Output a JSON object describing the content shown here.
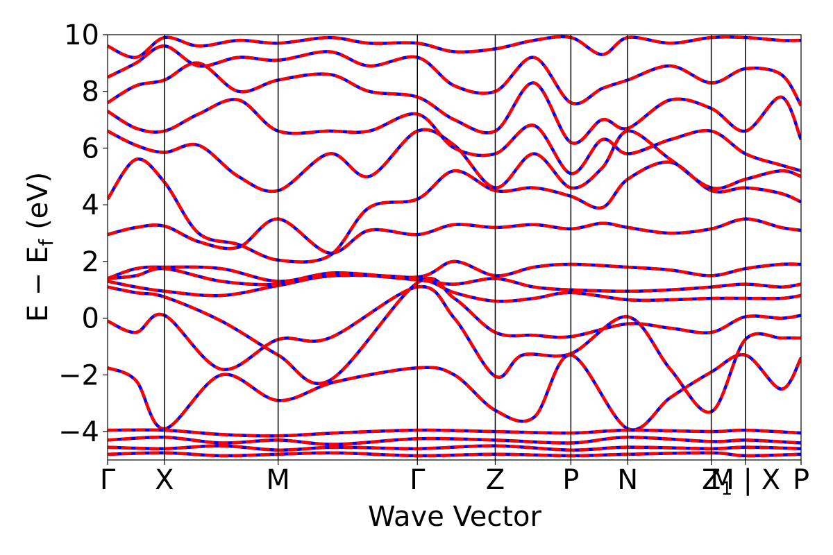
{
  "chart_data": {
    "type": "line",
    "xlabel": "Wave Vector",
    "ylabel": "E − E",
    "ylabel_sub": "f",
    "ylabel_unit": "(eV)",
    "ylim": [
      -5,
      10
    ],
    "yticks": [
      10,
      8,
      6,
      4,
      2,
      0,
      -2,
      -4
    ],
    "ytick_labels": [
      "10",
      "8",
      "6",
      "4",
      "2",
      "0",
      "−2",
      "−4"
    ],
    "xlim": [
      0,
      12.2
    ],
    "kpath": [
      {
        "label": "Γ",
        "x": 0.0
      },
      {
        "label": "X",
        "x": 1.0
      },
      {
        "label": "M",
        "x": 3.0
      },
      {
        "label": "Γ",
        "x": 5.45
      },
      {
        "label": "Z",
        "x": 6.82
      },
      {
        "label": "P",
        "x": 8.15
      },
      {
        "label": "N",
        "x": 9.15
      },
      {
        "label": "Z",
        "x": 10.62
      },
      {
        "label": "M | X",
        "x": 11.22
      },
      {
        "label": "P",
        "x": 12.2
      }
    ],
    "kpath_sub_1": "1",
    "grid": false,
    "series_colors": {
      "primary": "#ff0000",
      "overlay": "#0000ff"
    },
    "bands": [
      {
        "x": [
          0,
          0.5,
          1,
          2,
          3,
          4,
          5.45,
          6.1,
          6.82,
          7.5,
          8.15,
          9.15,
          9.9,
          10.62,
          11.22,
          11.85,
          12.2
        ],
        "y": [
          -1.75,
          -2.2,
          -3.9,
          -2.0,
          -2.9,
          -2.25,
          -1.75,
          -2.0,
          -3.25,
          -3.5,
          -1.3,
          -3.9,
          -2.8,
          -1.9,
          -1.3,
          -2.5,
          -1.4
        ]
      },
      {
        "x": [
          0,
          0.5,
          1,
          2,
          3,
          3.9,
          5.45,
          6.1,
          6.82,
          7.3,
          8.15,
          9.15,
          9.9,
          10.62,
          11.22,
          11.85,
          12.2
        ],
        "y": [
          -0.1,
          -0.5,
          0.1,
          -1.8,
          -0.75,
          -0.7,
          1.1,
          0.0,
          -2.05,
          -1.3,
          -1.25,
          0.05,
          -1.8,
          -3.3,
          -0.75,
          -0.7,
          -0.7
        ]
      },
      {
        "x": [
          0,
          0.5,
          1,
          2,
          3,
          3.9,
          5.45,
          6.1,
          6.82,
          7.5,
          8.15,
          9.15,
          9.9,
          10.62,
          11.22,
          11.85,
          12.2
        ],
        "y": [
          1.1,
          0.9,
          0.75,
          -0.1,
          -1.3,
          -2.2,
          1.25,
          0.7,
          -0.5,
          -0.6,
          -0.65,
          -0.2,
          -0.35,
          -0.5,
          0.05,
          0.0,
          0.1
        ]
      },
      {
        "x": [
          0,
          0.5,
          1,
          2,
          3,
          4,
          5.45,
          6.1,
          6.82,
          7.5,
          8.15,
          9.15,
          9.9,
          10.62,
          11.22,
          11.85,
          12.2
        ],
        "y": [
          1.3,
          1.1,
          0.95,
          0.8,
          1.15,
          1.5,
          1.4,
          0.9,
          0.6,
          0.7,
          0.9,
          0.65,
          0.65,
          0.7,
          0.7,
          0.7,
          0.8
        ]
      },
      {
        "x": [
          0,
          0.5,
          1,
          2,
          3,
          4,
          5.45,
          6.1,
          6.82,
          7.5,
          8.15,
          9.15,
          9.9,
          10.62,
          11.22,
          11.85,
          12.2
        ],
        "y": [
          1.4,
          1.5,
          1.75,
          1.3,
          1.2,
          1.55,
          1.35,
          1.2,
          1.4,
          1.1,
          1.0,
          0.95,
          1.0,
          1.1,
          1.2,
          1.1,
          1.2
        ]
      },
      {
        "x": [
          0,
          0.5,
          1,
          2,
          3,
          4,
          5.45,
          6.1,
          6.82,
          7.5,
          8.15,
          9.15,
          9.9,
          10.62,
          11.22,
          11.85,
          12.2
        ],
        "y": [
          1.4,
          1.75,
          1.8,
          1.75,
          1.3,
          1.6,
          1.45,
          2.0,
          1.5,
          1.8,
          1.9,
          1.8,
          1.7,
          1.5,
          1.75,
          1.9,
          1.9
        ]
      },
      {
        "x": [
          0,
          0.5,
          1,
          1.6,
          2.3,
          3,
          3.9,
          4.6,
          5.45,
          6.1,
          6.82,
          7.5,
          8.15,
          8.7,
          9.15,
          9.9,
          10.62,
          11.22,
          11.85,
          12.2
        ],
        "y": [
          2.95,
          3.2,
          3.25,
          2.7,
          2.5,
          3.5,
          2.3,
          3.1,
          2.95,
          3.3,
          3.2,
          3.3,
          3.15,
          3.35,
          3.2,
          3.0,
          3.15,
          3.5,
          3.2,
          3.1
        ]
      },
      {
        "x": [
          0,
          0.5,
          1,
          1.6,
          2.3,
          3,
          3.9,
          4.6,
          5.45,
          6.1,
          6.82,
          7.5,
          8.15,
          8.7,
          9.15,
          9.9,
          10.62,
          11.22,
          11.85,
          12.2
        ],
        "y": [
          4.2,
          5.6,
          4.8,
          3.0,
          2.6,
          2.05,
          2.2,
          3.9,
          4.2,
          5.2,
          4.5,
          4.6,
          4.3,
          3.9,
          4.9,
          5.5,
          4.5,
          4.6,
          4.4,
          4.1
        ]
      },
      {
        "x": [
          0,
          0.5,
          1,
          1.6,
          2.3,
          3,
          3.9,
          4.6,
          5.45,
          6.1,
          6.82,
          7.5,
          8.15,
          8.7,
          9.15,
          9.9,
          10.62,
          11.22,
          11.85,
          12.2
        ],
        "y": [
          6.6,
          6.1,
          5.85,
          6.1,
          5.0,
          4.5,
          5.8,
          5.0,
          6.6,
          6.1,
          4.6,
          5.8,
          4.6,
          5.3,
          6.6,
          5.6,
          4.6,
          4.9,
          5.2,
          5.0
        ]
      },
      {
        "x": [
          0,
          0.5,
          1,
          1.6,
          2.3,
          3,
          3.9,
          4.6,
          5.45,
          6.1,
          6.82,
          7.5,
          8.15,
          8.7,
          9.15,
          9.9,
          10.62,
          11.22,
          11.85,
          12.2
        ],
        "y": [
          7.3,
          6.7,
          6.6,
          7.2,
          7.7,
          6.6,
          6.6,
          6.6,
          7.2,
          6.0,
          5.8,
          6.8,
          5.1,
          6.3,
          5.8,
          6.3,
          6.6,
          5.8,
          5.4,
          5.2
        ]
      },
      {
        "x": [
          0,
          0.5,
          1,
          1.6,
          2.3,
          3,
          3.9,
          4.6,
          5.45,
          6.1,
          6.82,
          7.5,
          8.15,
          8.7,
          9.15,
          9.9,
          10.62,
          11.22,
          11.85,
          12.2
        ],
        "y": [
          7.6,
          8.2,
          8.4,
          9.0,
          8.0,
          8.4,
          8.6,
          8.0,
          7.8,
          7.0,
          6.6,
          8.3,
          6.2,
          7.0,
          6.7,
          7.7,
          7.4,
          6.6,
          7.8,
          6.3
        ]
      },
      {
        "x": [
          0,
          0.5,
          1,
          1.6,
          2.3,
          3,
          3.9,
          4.6,
          5.45,
          6.1,
          6.82,
          7.5,
          8.15,
          8.7,
          9.15,
          9.9,
          10.62,
          11.22,
          11.85,
          12.2
        ],
        "y": [
          8.5,
          9.0,
          9.6,
          8.9,
          9.2,
          9.1,
          9.4,
          8.9,
          9.2,
          8.2,
          8.0,
          9.2,
          7.6,
          8.1,
          8.4,
          8.9,
          8.3,
          8.8,
          8.6,
          7.5
        ]
      },
      {
        "x": [
          0,
          0.5,
          1,
          1.6,
          2.3,
          3,
          3.9,
          4.6,
          5.45,
          6.1,
          6.82,
          7.5,
          8.15,
          8.7,
          9.15,
          9.9,
          10.62,
          11.22,
          11.85,
          12.2
        ],
        "y": [
          9.6,
          9.2,
          9.9,
          9.6,
          9.8,
          9.7,
          9.9,
          9.7,
          9.7,
          9.4,
          9.5,
          9.8,
          9.9,
          9.3,
          9.9,
          9.7,
          9.9,
          9.9,
          9.8,
          9.8
        ]
      },
      {
        "x": [
          0,
          1,
          2,
          3,
          4,
          5.45,
          6.82,
          8.15,
          9.15,
          10.62,
          11.22,
          12.2
        ],
        "y": [
          -3.95,
          -3.95,
          -4.1,
          -4.15,
          -4.05,
          -3.95,
          -4.0,
          -4.05,
          -3.95,
          -4.0,
          -3.95,
          -4.05
        ]
      },
      {
        "x": [
          0,
          1,
          2,
          3,
          4,
          5.45,
          6.82,
          8.15,
          9.15,
          10.62,
          11.22,
          12.2
        ],
        "y": [
          -4.3,
          -4.2,
          -4.4,
          -4.3,
          -4.45,
          -4.25,
          -4.3,
          -4.4,
          -4.2,
          -4.35,
          -4.3,
          -4.4
        ]
      },
      {
        "x": [
          0,
          1,
          2,
          3,
          4,
          5.45,
          6.82,
          8.15,
          9.15,
          10.62,
          11.22,
          12.2
        ],
        "y": [
          -4.55,
          -4.6,
          -4.5,
          -4.65,
          -4.55,
          -4.6,
          -4.5,
          -4.65,
          -4.55,
          -4.6,
          -4.55,
          -4.6
        ]
      },
      {
        "x": [
          0,
          1,
          2,
          3,
          4,
          5.45,
          6.82,
          8.15,
          9.15,
          10.62,
          11.22,
          12.2
        ],
        "y": [
          -4.8,
          -4.75,
          -4.85,
          -4.8,
          -4.75,
          -4.85,
          -4.8,
          -4.85,
          -4.8,
          -4.75,
          -4.85,
          -4.8
        ]
      }
    ]
  }
}
